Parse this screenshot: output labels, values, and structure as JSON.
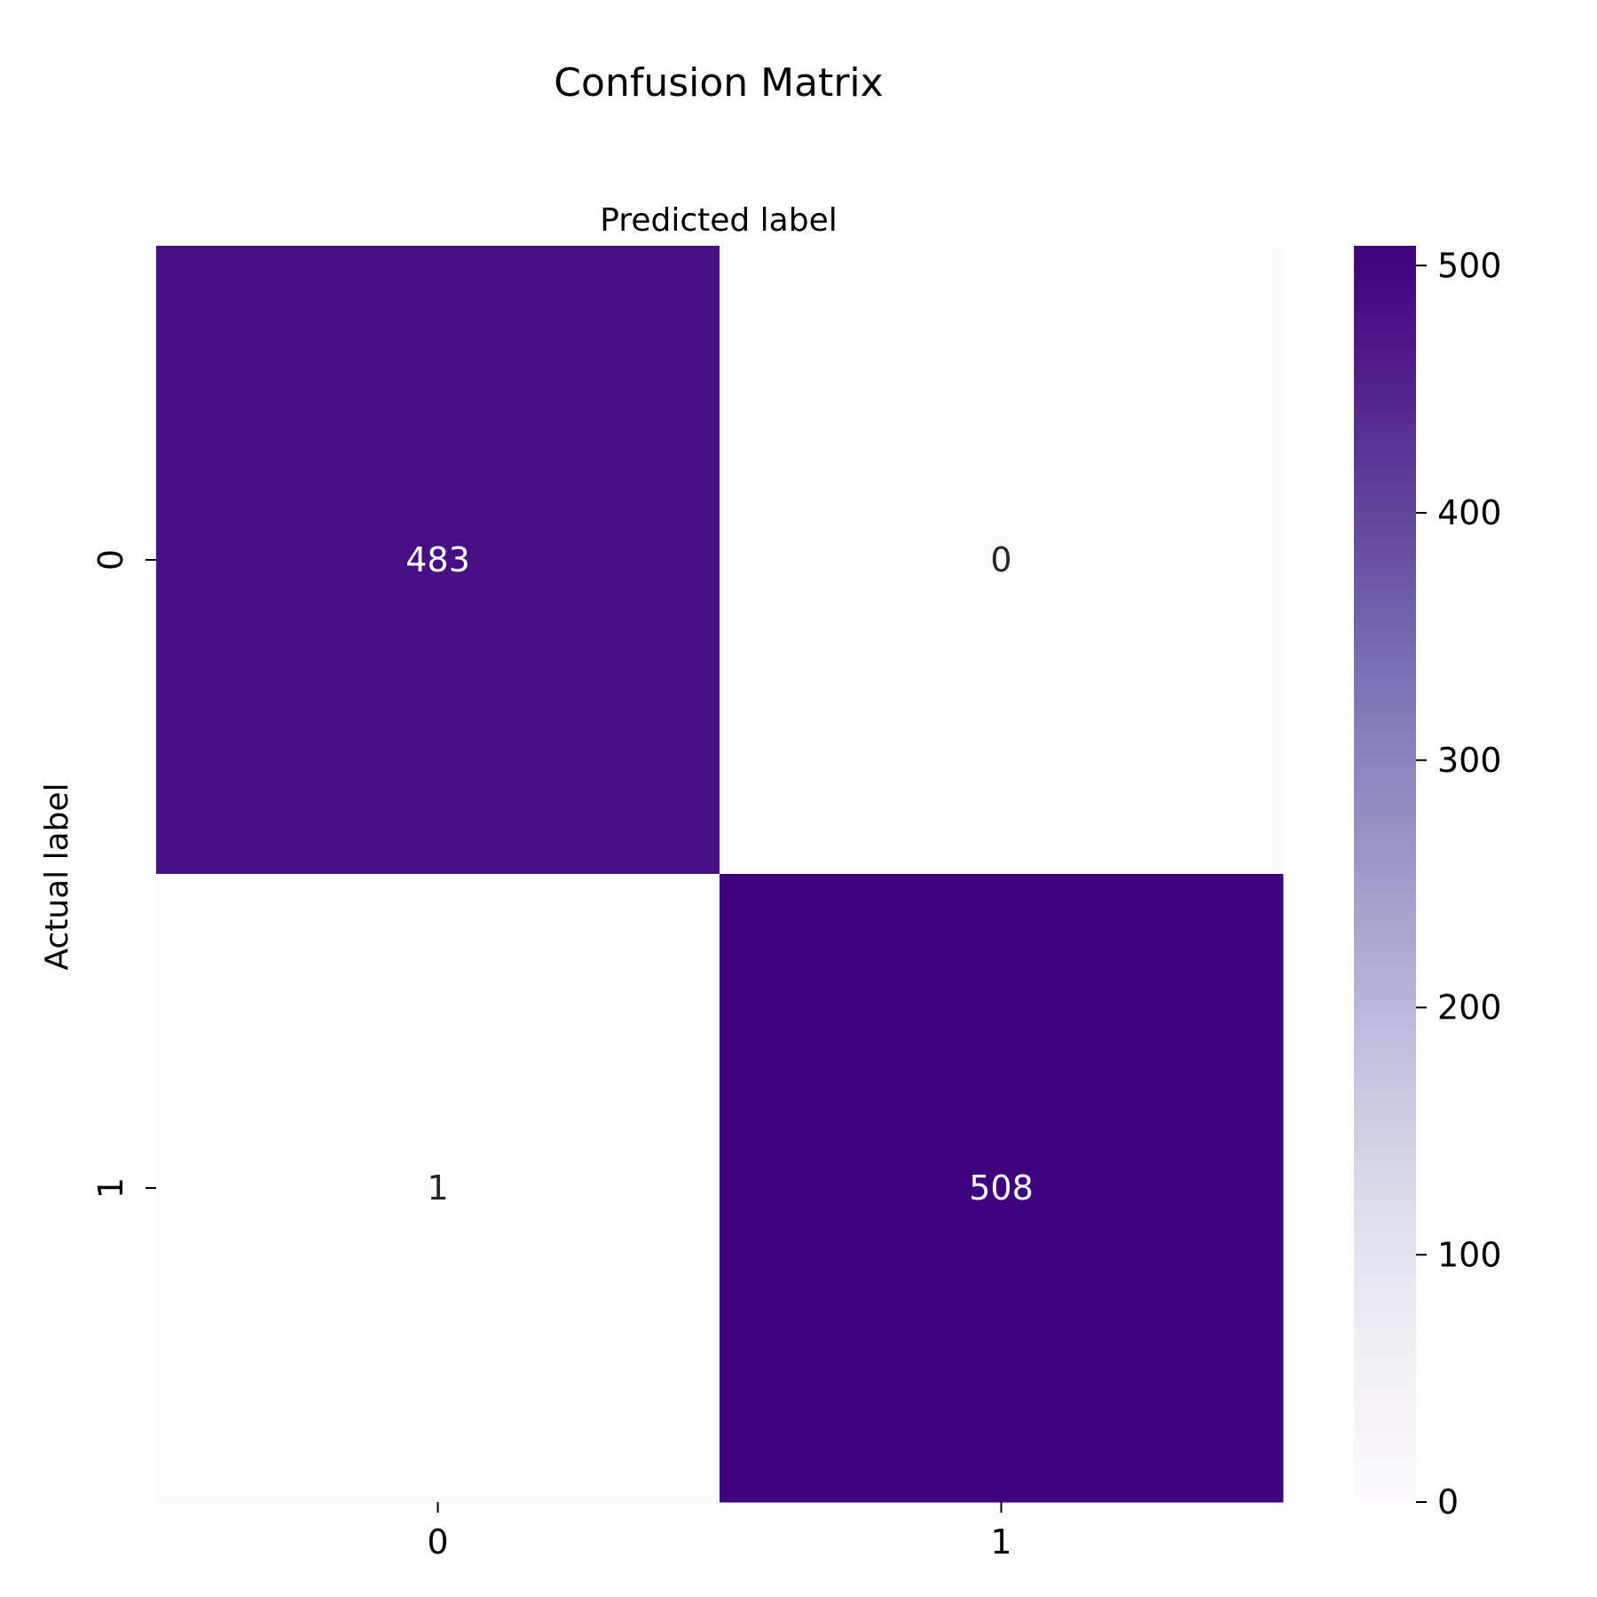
{
  "chart_data": {
    "type": "heatmap",
    "title": "Confusion Matrix",
    "xlabel": "Predicted label",
    "ylabel": "Actual label",
    "x_categories": [
      "0",
      "1"
    ],
    "y_categories": [
      "0",
      "1"
    ],
    "values": [
      [
        483,
        0
      ],
      [
        1,
        508
      ]
    ],
    "colormap": "Purples",
    "colorbar": {
      "range": [
        0,
        508
      ],
      "ticks": [
        0,
        100,
        200,
        300,
        400,
        500
      ],
      "tick_labels": [
        "0",
        "100",
        "200",
        "300",
        "400",
        "500"
      ]
    },
    "colors": {
      "low": "#fcfbfd",
      "high": "#3f007d"
    }
  }
}
